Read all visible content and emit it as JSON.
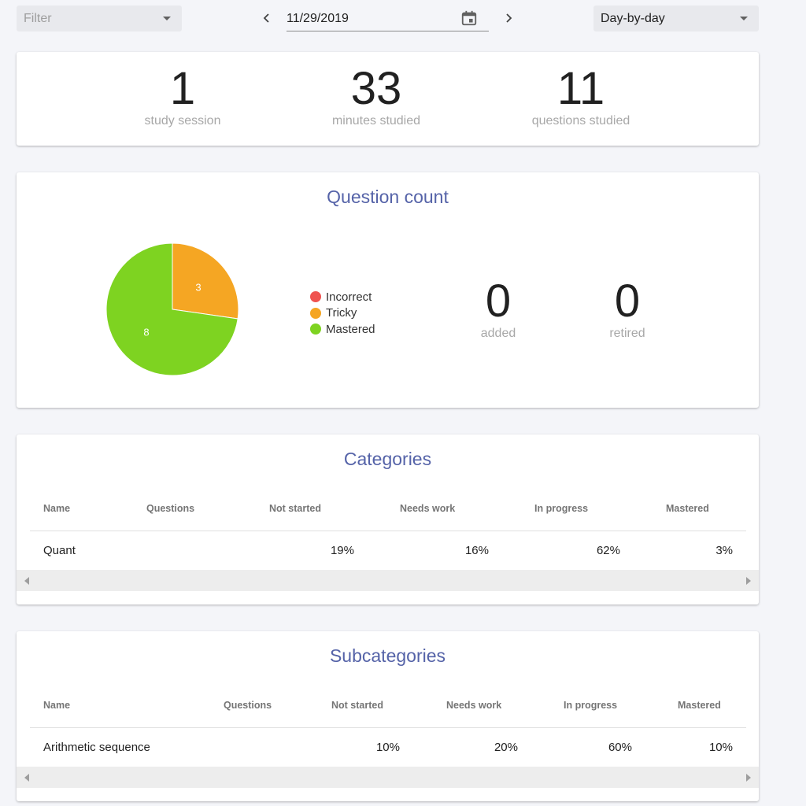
{
  "toolbar": {
    "filter_placeholder": "Filter",
    "date": "11/29/2019",
    "period": "Day-by-day"
  },
  "summary": {
    "stats": [
      {
        "value": "1",
        "label": "study session"
      },
      {
        "value": "33",
        "label": "minutes studied"
      },
      {
        "value": "11",
        "label": "questions studied"
      }
    ]
  },
  "question_count": {
    "title": "Question count",
    "legend": [
      {
        "label": "Incorrect",
        "color": "#ef5350"
      },
      {
        "label": "Tricky",
        "color": "#f5a623"
      },
      {
        "label": "Mastered",
        "color": "#7ed321"
      }
    ],
    "added": {
      "value": "0",
      "label": "added"
    },
    "retired": {
      "value": "0",
      "label": "retired"
    }
  },
  "chart_data": {
    "type": "pie",
    "slices": [
      {
        "label": "Incorrect",
        "value": 0,
        "color": "#ef5350",
        "display": ""
      },
      {
        "label": "Tricky",
        "value": 3,
        "color": "#f5a623",
        "display": "3"
      },
      {
        "label": "Mastered",
        "value": 8,
        "color": "#7ed321",
        "display": "8"
      }
    ],
    "title": ""
  },
  "categories": {
    "title": "Categories",
    "headers": [
      "Name",
      "Questions",
      "Not started",
      "Needs work",
      "In progress",
      "Mastered"
    ],
    "rows": [
      {
        "name": "Quant",
        "questions": "",
        "not_started": "19%",
        "needs_work": "16%",
        "in_progress": "62%",
        "mastered": "3%"
      }
    ]
  },
  "subcategories": {
    "title": "Subcategories",
    "headers": [
      "Name",
      "Questions",
      "Not started",
      "Needs work",
      "In progress",
      "Mastered"
    ],
    "rows": [
      {
        "name": "Arithmetic sequence",
        "questions": "",
        "not_started": "10%",
        "needs_work": "20%",
        "in_progress": "60%",
        "mastered": "10%"
      }
    ]
  }
}
